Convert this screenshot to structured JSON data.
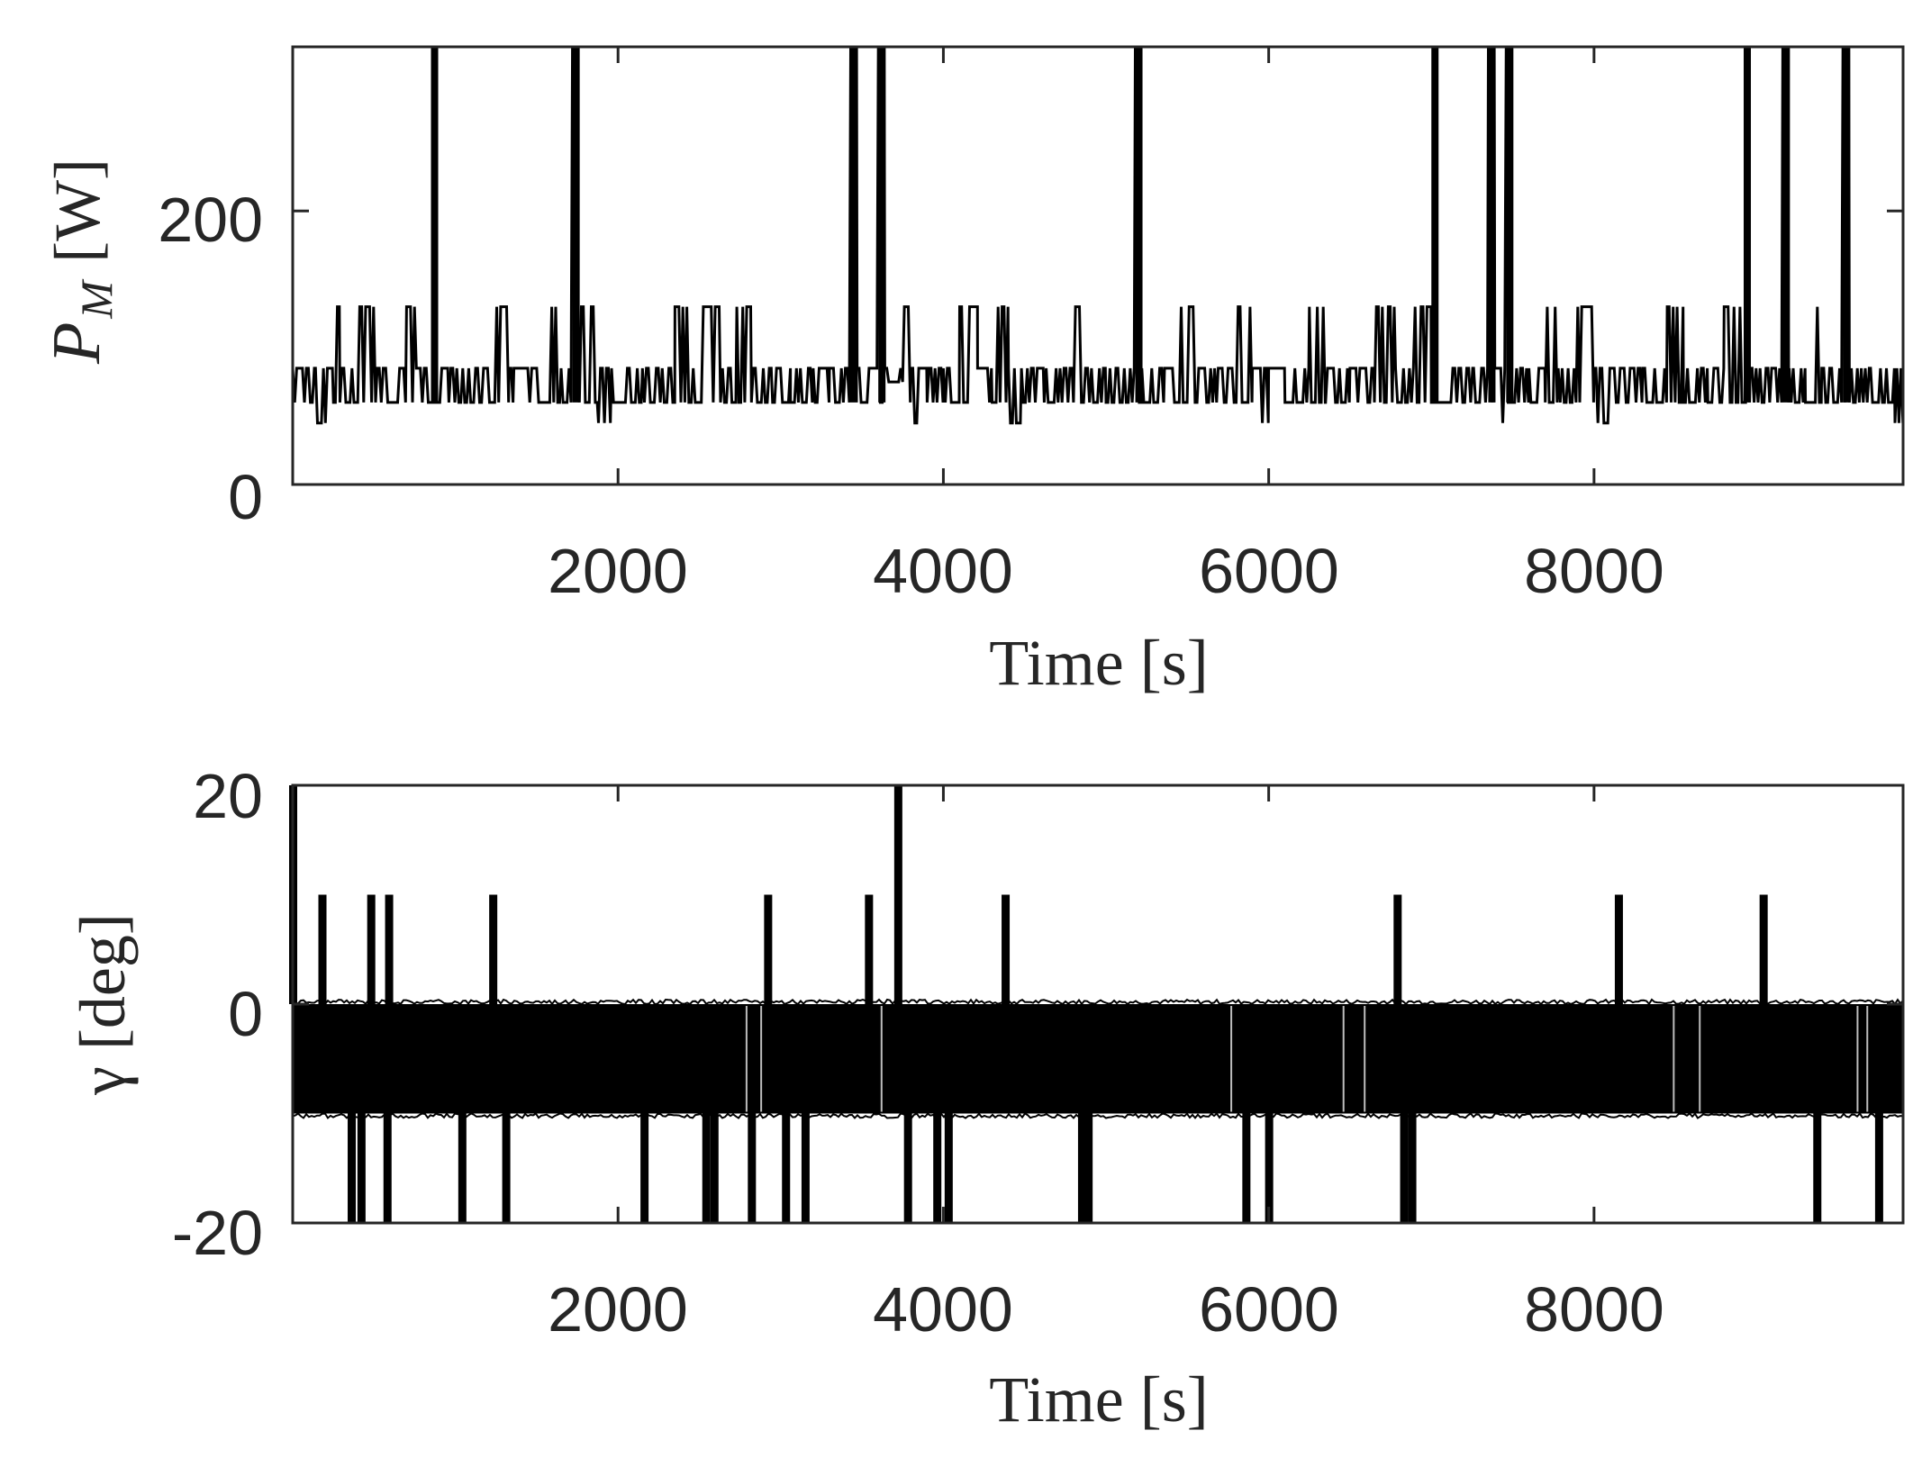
{
  "chart_data": [
    {
      "type": "line",
      "xlabel": "Time [s]",
      "ylabel": "P",
      "ylabel_subscript": "M",
      "ylabel_unit": "[W]",
      "xlim": [
        0,
        9900
      ],
      "ylim": [
        0,
        320
      ],
      "xticks": [
        2000,
        4000,
        6000,
        8000
      ],
      "yticks": [
        0,
        200
      ],
      "xtick_labels": [
        "2000",
        "4000",
        "6000",
        "8000"
      ],
      "ytick_labels": [
        "0",
        "200"
      ],
      "grid": false,
      "line_color": "#000000",
      "series": [
        {
          "values_note_levels": [
            45,
            60,
            85,
            130,
            320
          ],
          "segments": [
            [
              0,
              85
            ],
            [
              60,
              60
            ],
            [
              140,
              45
            ],
            [
              220,
              85
            ],
            [
              250,
              130
            ],
            [
              290,
              85
            ],
            [
              340,
              60
            ],
            [
              400,
              130
            ],
            [
              520,
              85
            ],
            [
              560,
              60
            ],
            [
              700,
              130
            ],
            [
              760,
              85
            ],
            [
              850,
              320
            ],
            [
              880,
              85
            ],
            [
              960,
              60
            ],
            [
              1100,
              85
            ],
            [
              1230,
              130
            ],
            [
              1330,
              60
            ],
            [
              1360,
              85
            ],
            [
              1500,
              60
            ],
            [
              1580,
              130
            ],
            [
              1650,
              60
            ],
            [
              1720,
              320
            ],
            [
              1750,
              130
            ],
            [
              1880,
              45
            ],
            [
              1960,
              85
            ],
            [
              2150,
              60
            ],
            [
              2300,
              85
            ],
            [
              2350,
              130
            ],
            [
              2450,
              60
            ],
            [
              2500,
              130
            ],
            [
              2630,
              85
            ],
            [
              2700,
              60
            ],
            [
              2730,
              130
            ],
            [
              2820,
              85
            ],
            [
              2950,
              60
            ],
            [
              3060,
              85
            ],
            [
              3200,
              60
            ],
            [
              3300,
              85
            ],
            [
              3430,
              320
            ],
            [
              3470,
              85
            ],
            [
              3600,
              320
            ],
            [
              3640,
              75
            ],
            [
              3760,
              130
            ],
            [
              3800,
              45
            ],
            [
              3900,
              85
            ],
            [
              4000,
              60
            ],
            [
              4100,
              130
            ],
            [
              4210,
              85
            ],
            [
              4300,
              130
            ],
            [
              4400,
              45
            ],
            [
              4480,
              85
            ],
            [
              4620,
              60
            ],
            [
              4800,
              130
            ],
            [
              4850,
              85
            ],
            [
              5000,
              60
            ],
            [
              5100,
              85
            ],
            [
              5180,
              320
            ],
            [
              5220,
              60
            ],
            [
              5360,
              85
            ],
            [
              5450,
              130
            ],
            [
              5570,
              60
            ],
            [
              5690,
              85
            ],
            [
              5800,
              130
            ],
            [
              5900,
              45
            ],
            [
              6000,
              85
            ],
            [
              6100,
              60
            ],
            [
              6250,
              130
            ],
            [
              6350,
              85
            ],
            [
              6500,
              60
            ],
            [
              6650,
              130
            ],
            [
              6780,
              85
            ],
            [
              6900,
              130
            ],
            [
              7000,
              320
            ],
            [
              7040,
              60
            ],
            [
              7120,
              85
            ],
            [
              7260,
              60
            ],
            [
              7350,
              320
            ],
            [
              7390,
              45
            ],
            [
              7460,
              320
            ],
            [
              7500,
              85
            ],
            [
              7600,
              60
            ],
            [
              7700,
              130
            ],
            [
              7780,
              85
            ],
            [
              7900,
              130
            ],
            [
              8000,
              45
            ],
            [
              8100,
              85
            ],
            [
              8300,
              60
            ],
            [
              8450,
              130
            ],
            [
              8550,
              85
            ],
            [
              8700,
              60
            ],
            [
              8800,
              130
            ],
            [
              8920,
              320
            ],
            [
              8960,
              85
            ],
            [
              9080,
              60
            ],
            [
              9160,
              320
            ],
            [
              9200,
              60
            ],
            [
              9300,
              130
            ],
            [
              9400,
              85
            ],
            [
              9530,
              320
            ],
            [
              9570,
              60
            ],
            [
              9700,
              85
            ],
            [
              9850,
              45
            ],
            [
              9900,
              60
            ]
          ]
        }
      ]
    },
    {
      "type": "line",
      "xlabel": "Time [s]",
      "ylabel": "γ [deg]",
      "xlim": [
        0,
        9900
      ],
      "ylim": [
        -20,
        20
      ],
      "xticks": [
        2000,
        4000,
        6000,
        8000
      ],
      "yticks": [
        -20,
        0,
        20
      ],
      "xtick_labels": [
        "2000",
        "4000",
        "6000",
        "8000"
      ],
      "ytick_labels": [
        "-20",
        "0",
        "20"
      ],
      "grid": false,
      "line_color": "#000000",
      "series": [
        {
          "band": [
            -10,
            0
          ],
          "spikes_up": [
            [
              0,
              20
            ],
            [
              180,
              10
            ],
            [
              480,
              10
            ],
            [
              590,
              10
            ],
            [
              1230,
              10
            ],
            [
              2920,
              10
            ],
            [
              3540,
              10
            ],
            [
              3720,
              20
            ],
            [
              4380,
              10
            ],
            [
              6790,
              10
            ],
            [
              8150,
              10
            ],
            [
              9040,
              10
            ]
          ],
          "spikes_down": [
            [
              360,
              -20
            ],
            [
              420,
              -20
            ],
            [
              580,
              -20
            ],
            [
              1040,
              -20
            ],
            [
              1310,
              -20
            ],
            [
              2160,
              -20
            ],
            [
              2540,
              -20
            ],
            [
              2590,
              -20
            ],
            [
              2820,
              -20
            ],
            [
              3030,
              -20
            ],
            [
              3150,
              -20
            ],
            [
              3780,
              -20
            ],
            [
              3960,
              -20
            ],
            [
              4030,
              -20
            ],
            [
              4850,
              -20
            ],
            [
              4890,
              -20
            ],
            [
              5860,
              -20
            ],
            [
              6000,
              -20
            ],
            [
              6830,
              -20
            ],
            [
              6880,
              -20
            ],
            [
              9370,
              -20
            ],
            [
              9750,
              -20
            ]
          ],
          "gaps": [
            2790,
            2880,
            3620,
            5770,
            6460,
            6590,
            8490,
            8650,
            9620,
            9680
          ]
        }
      ]
    }
  ]
}
